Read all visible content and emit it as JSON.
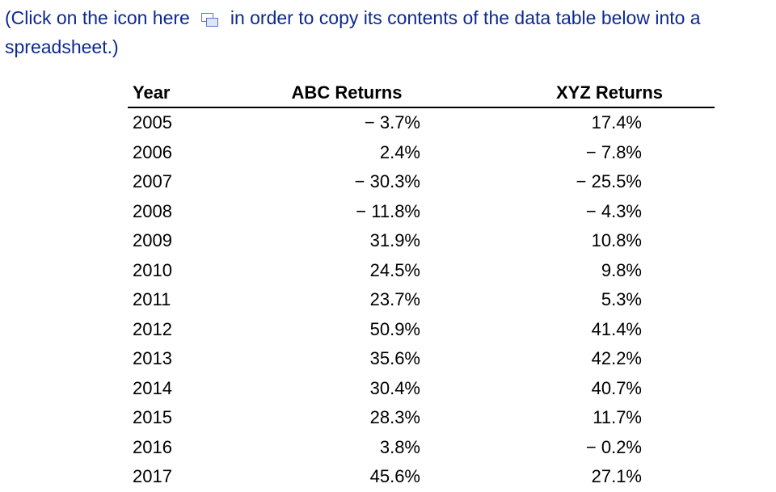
{
  "instruction": {
    "before_icon": "(Click on the icon here",
    "after_icon": "in order to copy its contents of the data table below into a spreadsheet.)",
    "icon": "copy-icon"
  },
  "table": {
    "headers": [
      "Year",
      "ABC Returns",
      "XYZ Returns"
    ],
    "rows": [
      [
        "2005",
        "− 3.7%",
        "17.4%"
      ],
      [
        "2006",
        "2.4%",
        "− 7.8%"
      ],
      [
        "2007",
        "− 30.3%",
        "− 25.5%"
      ],
      [
        "2008",
        "− 11.8%",
        "− 4.3%"
      ],
      [
        "2009",
        "31.9%",
        "10.8%"
      ],
      [
        "2010",
        "24.5%",
        "9.8%"
      ],
      [
        "2011",
        "23.7%",
        "5.3%"
      ],
      [
        "2012",
        "50.9%",
        "41.4%"
      ],
      [
        "2013",
        "35.6%",
        "42.2%"
      ],
      [
        "2014",
        "30.4%",
        "40.7%"
      ],
      [
        "2015",
        "28.3%",
        "11.7%"
      ],
      [
        "2016",
        "3.8%",
        "− 0.2%"
      ],
      [
        "2017",
        "45.6%",
        "27.1%"
      ]
    ]
  },
  "colors": {
    "instruction_text": "#0c2a8f",
    "icon_stroke": "#5a75c7",
    "icon_fill": "#dce5fb"
  }
}
